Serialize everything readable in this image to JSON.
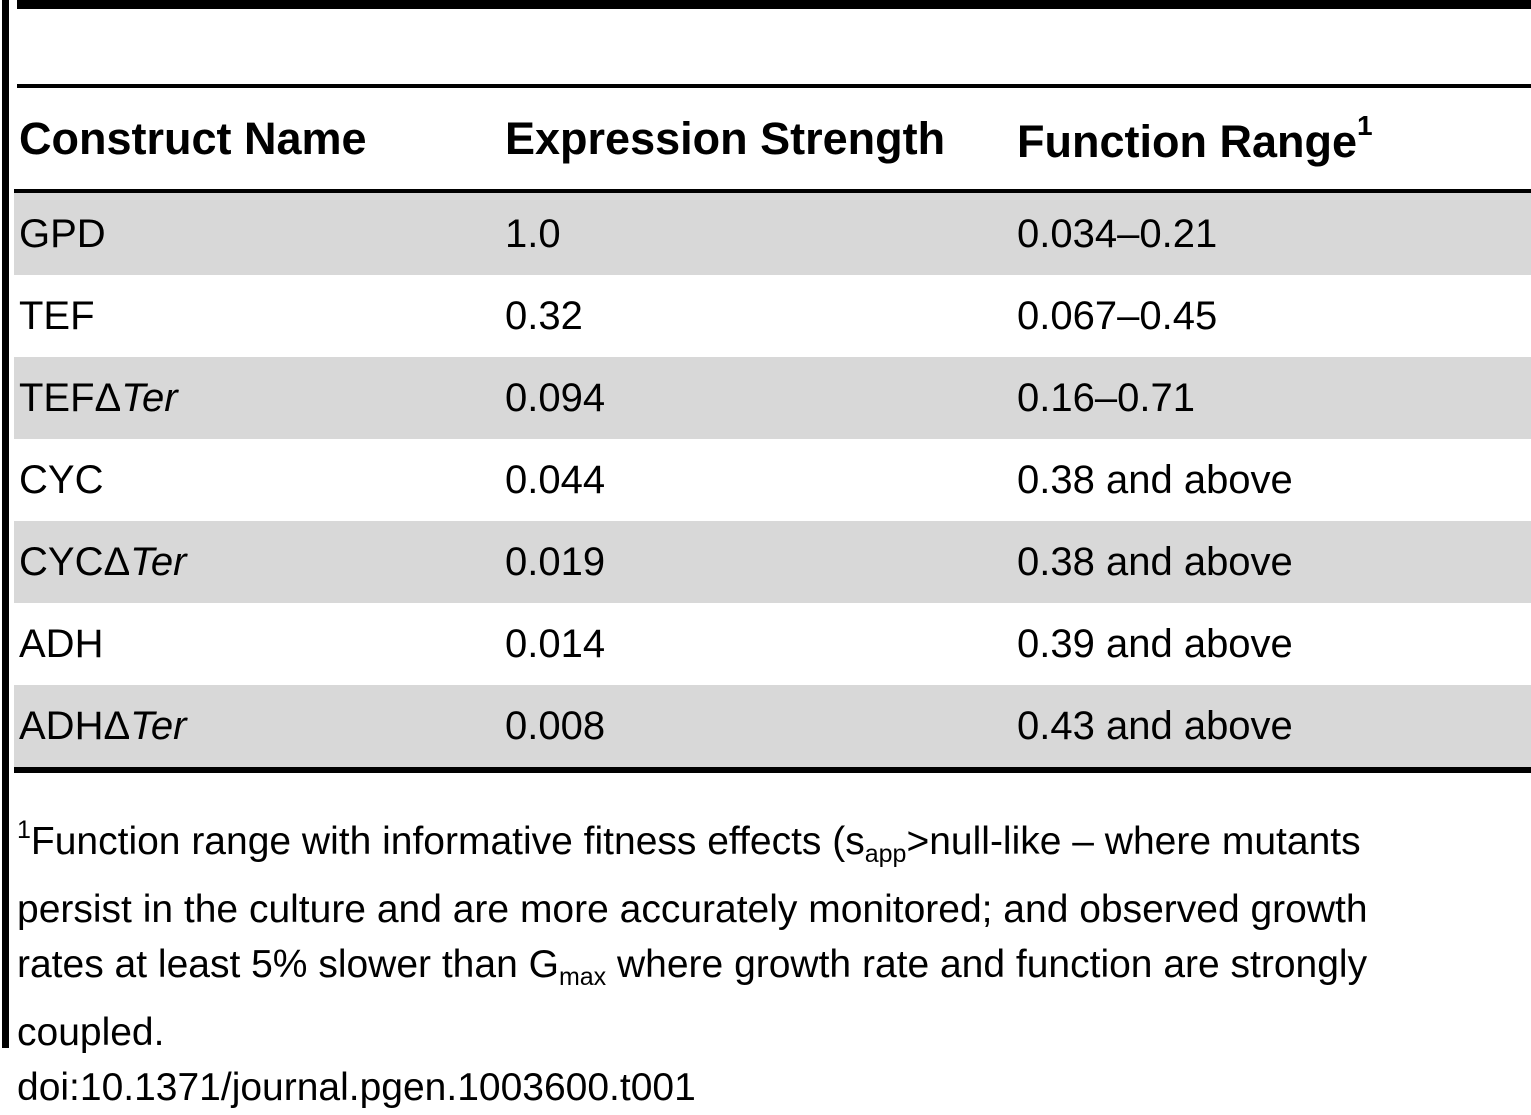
{
  "table": {
    "headers": {
      "col1": "Construct Name",
      "col2": "Expression Strength",
      "col3": "Function Range",
      "col3_sup": "1"
    },
    "rows": [
      {
        "name": "GPD",
        "delta": "",
        "italic": "",
        "expression": "1.0",
        "range": "0.034–0.21"
      },
      {
        "name": "TEF",
        "delta": "",
        "italic": "",
        "expression": "0.32",
        "range": "0.067–0.45"
      },
      {
        "name": "TEF",
        "delta": "Δ",
        "italic": "Ter",
        "expression": "0.094",
        "range": "0.16–0.71"
      },
      {
        "name": "CYC",
        "delta": "",
        "italic": "",
        "expression": "0.044",
        "range": "0.38 and above"
      },
      {
        "name": "CYC",
        "delta": "Δ",
        "italic": "Ter",
        "expression": "0.019",
        "range": "0.38 and above"
      },
      {
        "name": "ADH",
        "delta": "",
        "italic": "",
        "expression": "0.014",
        "range": "0.39 and above"
      },
      {
        "name": "ADH",
        "delta": "Δ",
        "italic": "Ter",
        "expression": "0.008",
        "range": "0.43 and above"
      }
    ]
  },
  "footnote": {
    "marker": "1",
    "line1_seg1": "Function range with informative fitness effects (s",
    "line1_sub": "app",
    "line1_seg2": ">null-like – where mutants",
    "line2": "persist in the culture and are more accurately monitored; and observed growth",
    "line3_seg1": "rates at least 5% slower than G",
    "line3_sub": "max",
    "line3_seg2": " where growth rate and function are strongly",
    "line4": "coupled.",
    "doi": "doi:10.1371/journal.pgen.1003600.t001"
  },
  "colors": {
    "row_shade": "#d8d8d8",
    "rule": "#000000",
    "text": "#000000"
  }
}
